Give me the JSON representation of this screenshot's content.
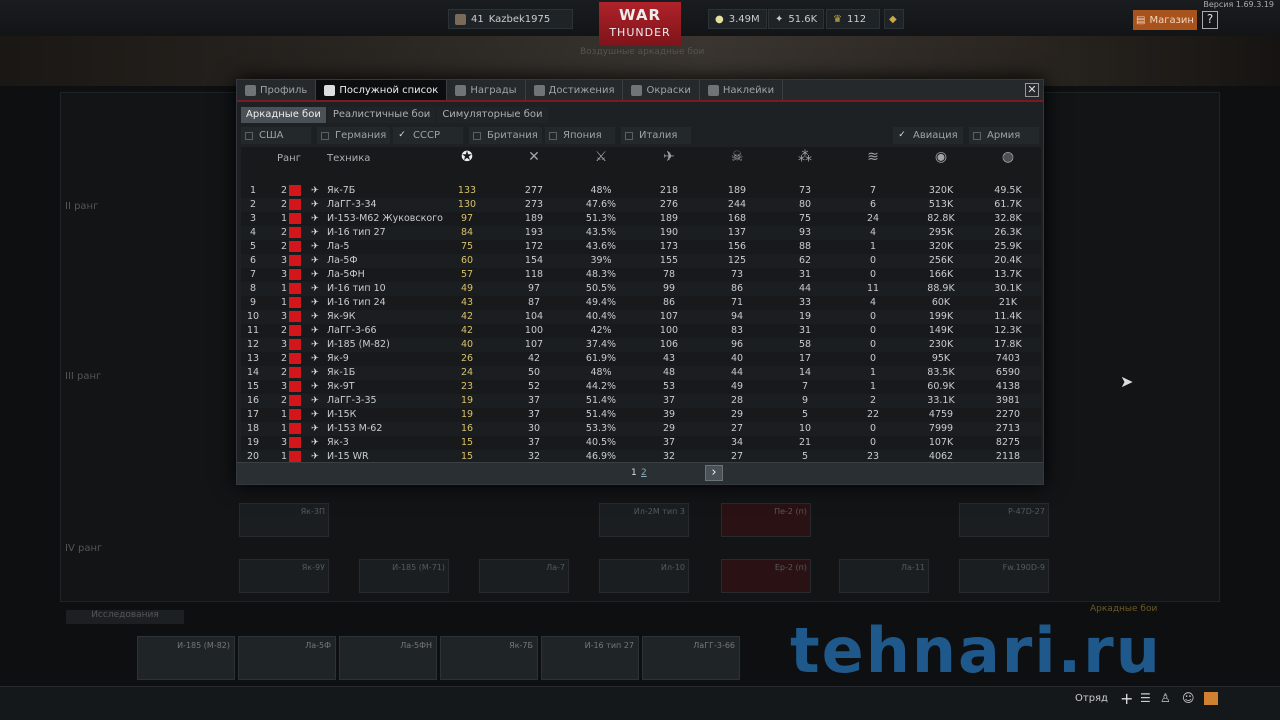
{
  "version": "Версия 1.69.3.19",
  "topbar": {
    "level": "41",
    "nickname": "Kazbek1975",
    "logo_top": "WAR",
    "logo_bottom": "THUNDER",
    "mode_select": "Воздушные аркадные бои",
    "silver": "3.49M",
    "rp": "51.6K",
    "gold": "112",
    "shop": "Магазин",
    "help": "?"
  },
  "modal": {
    "tabs": [
      {
        "label": "Профиль",
        "icon": "profile-icon"
      },
      {
        "label": "Послужной список",
        "icon": "record-icon",
        "active": true
      },
      {
        "label": "Награды",
        "icon": "awards-icon"
      },
      {
        "label": "Достижения",
        "icon": "achievements-icon"
      },
      {
        "label": "Окраски",
        "icon": "skins-icon"
      },
      {
        "label": "Наклейки",
        "icon": "decals-icon"
      }
    ],
    "close": "✕",
    "modes": [
      {
        "label": "Аркадные бои",
        "active": true
      },
      {
        "label": "Реалистичные бои"
      },
      {
        "label": "Симуляторные бои"
      }
    ],
    "nations": [
      {
        "label": "США",
        "checked": false
      },
      {
        "label": "Германия",
        "checked": false
      },
      {
        "label": "СССР",
        "checked": true
      },
      {
        "label": "Британия",
        "checked": false
      },
      {
        "label": "Япония",
        "checked": false
      },
      {
        "label": "Италия",
        "checked": false
      }
    ],
    "types": [
      {
        "label": "Авиация",
        "checked": true
      },
      {
        "label": "Армия",
        "checked": false
      }
    ],
    "headers": {
      "rank": "Ранг",
      "vehicle": "Техника",
      "stat_icons": [
        "battles-icon",
        "respawns-icon",
        "victories-icon",
        "air-kills-icon",
        "deaths-icon",
        "ground-kills-icon",
        "naval-kills-icon",
        "silver-earned-icon",
        "rp-earned-icon"
      ]
    },
    "rows": [
      [
        "1",
        "2",
        "Як-7Б",
        "133",
        "277",
        "48%",
        "218",
        "189",
        "73",
        "7",
        "320K",
        "49.5K"
      ],
      [
        "2",
        "2",
        "ЛаГГ-3-34",
        "130",
        "273",
        "47.6%",
        "276",
        "244",
        "80",
        "6",
        "513K",
        "61.7K"
      ],
      [
        "3",
        "1",
        "И-153-М62 Жуковского",
        "97",
        "189",
        "51.3%",
        "189",
        "168",
        "75",
        "24",
        "82.8K",
        "32.8K"
      ],
      [
        "4",
        "2",
        "И-16 тип 27",
        "84",
        "193",
        "43.5%",
        "190",
        "137",
        "93",
        "4",
        "295K",
        "26.3K"
      ],
      [
        "5",
        "2",
        "Ла-5",
        "75",
        "172",
        "43.6%",
        "173",
        "156",
        "88",
        "1",
        "320K",
        "25.9K"
      ],
      [
        "6",
        "3",
        "Ла-5Ф",
        "60",
        "154",
        "39%",
        "155",
        "125",
        "62",
        "0",
        "256K",
        "20.4K"
      ],
      [
        "7",
        "3",
        "Ла-5ФН",
        "57",
        "118",
        "48.3%",
        "78",
        "73",
        "31",
        "0",
        "166K",
        "13.7K"
      ],
      [
        "8",
        "1",
        "И-16 тип 10",
        "49",
        "97",
        "50.5%",
        "99",
        "86",
        "44",
        "11",
        "88.9K",
        "30.1K"
      ],
      [
        "9",
        "1",
        "И-16 тип 24",
        "43",
        "87",
        "49.4%",
        "86",
        "71",
        "33",
        "4",
        "60K",
        "21K"
      ],
      [
        "10",
        "3",
        "Як-9К",
        "42",
        "104",
        "40.4%",
        "107",
        "94",
        "19",
        "0",
        "199K",
        "11.4K"
      ],
      [
        "11",
        "2",
        "ЛаГГ-3-66",
        "42",
        "100",
        "42%",
        "100",
        "83",
        "31",
        "0",
        "149K",
        "12.3K"
      ],
      [
        "12",
        "3",
        "И-185 (М-82)",
        "40",
        "107",
        "37.4%",
        "106",
        "96",
        "58",
        "0",
        "230K",
        "17.8K"
      ],
      [
        "13",
        "2",
        "Як-9",
        "26",
        "42",
        "61.9%",
        "43",
        "40",
        "17",
        "0",
        "95K",
        "7403"
      ],
      [
        "14",
        "2",
        "Як-1Б",
        "24",
        "50",
        "48%",
        "48",
        "44",
        "14",
        "1",
        "83.5K",
        "6590"
      ],
      [
        "15",
        "3",
        "Як-9Т",
        "23",
        "52",
        "44.2%",
        "53",
        "49",
        "7",
        "1",
        "60.9K",
        "4138"
      ],
      [
        "16",
        "2",
        "ЛаГГ-3-35",
        "19",
        "37",
        "51.4%",
        "37",
        "28",
        "9",
        "2",
        "33.1K",
        "3981"
      ],
      [
        "17",
        "1",
        "И-15К",
        "19",
        "37",
        "51.4%",
        "39",
        "29",
        "5",
        "22",
        "4759",
        "2270"
      ],
      [
        "18",
        "1",
        "И-153 М-62",
        "16",
        "30",
        "53.3%",
        "29",
        "27",
        "10",
        "0",
        "7999",
        "2713"
      ],
      [
        "19",
        "3",
        "Як-3",
        "15",
        "37",
        "40.5%",
        "37",
        "34",
        "21",
        "0",
        "107K",
        "8275"
      ],
      [
        "20",
        "1",
        "И-15 WR",
        "15",
        "32",
        "46.9%",
        "32",
        "27",
        "5",
        "23",
        "4062",
        "2118"
      ]
    ],
    "pages": [
      "1",
      "2"
    ],
    "next": "›"
  },
  "tree": {
    "ranks": [
      "II ранг",
      "III ранг",
      "IV ранг"
    ],
    "cards": [
      "Як-3П",
      "Ил-2М тип 3",
      "Пе-2 (п)",
      "P-47D-27",
      "Як-9У",
      "И-185 (М-71)",
      "Ла-7",
      "Ил-10",
      "Ер-2 (п)",
      "Ла-11",
      "Fw.190D-9"
    ]
  },
  "bottom": {
    "research": "Исследования",
    "crew_slots": [
      "И-185 (М-82)",
      "Ла-5Ф",
      "Ла-5ФН",
      "Як-7Б",
      "И-16 тип 27",
      "ЛаГГ-3-66"
    ],
    "mode": "Аркадные бои",
    "squad": "Отряд"
  },
  "watermark": "tehnari.ru",
  "colors": {
    "accent": "#7a1a1e",
    "shop": "#a8521c",
    "battles": "#d8c06a",
    "flag": "#d3161b"
  }
}
